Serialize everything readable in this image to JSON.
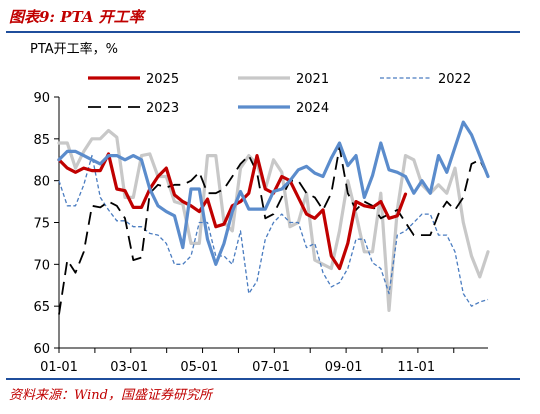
{
  "figure": {
    "title": "图表9:  PTA 开工率",
    "source": "资料来源：Wind，国盛证券研究所"
  },
  "chart_data": {
    "type": "line",
    "ylabel": "PTA开工率，%",
    "xlabel": "",
    "ylim": [
      60,
      90
    ],
    "yticks": [
      60,
      65,
      70,
      75,
      80,
      85,
      90
    ],
    "xlim": [
      1,
      53
    ],
    "xticks": [
      {
        "label": "01-01",
        "week": 1
      },
      {
        "label": "03-01",
        "week": 9.5
      },
      {
        "label": "05-01",
        "week": 18
      },
      {
        "label": "07-01",
        "week": 26.7
      },
      {
        "label": "09-01",
        "week": 35.5
      },
      {
        "label": "11-01",
        "week": 44.3
      }
    ],
    "grid": false,
    "legend_position": "top",
    "series": [
      {
        "name": "2025",
        "color": "#c00000",
        "dash": "solid",
        "width": 3.2,
        "values": [
          82.5,
          81.5,
          81,
          81.5,
          81.2,
          81.2,
          83.2,
          79,
          78.8,
          76.8,
          76.8,
          79,
          80.5,
          81.5,
          78.3,
          77.5,
          77,
          76.3,
          77.8,
          74.5,
          74.8,
          77,
          77.5,
          78.5,
          83,
          79,
          78.5,
          80.5,
          80,
          78,
          76,
          75.5,
          76.5,
          71,
          69.5,
          72.5,
          77.5,
          77,
          76.8,
          77.5,
          75.5,
          75.8,
          78.4
        ]
      },
      {
        "name": "2021",
        "color": "#c8c8c8",
        "dash": "solid",
        "width": 3.2,
        "values": [
          84.5,
          84.5,
          81.5,
          83.5,
          85,
          85,
          86,
          85.2,
          78,
          78,
          83,
          83.2,
          80.5,
          80.5,
          77.5,
          77.2,
          72.5,
          72.5,
          83,
          83,
          75,
          74,
          81.5,
          83,
          82,
          79,
          82.5,
          81,
          74.5,
          75,
          78.5,
          70.5,
          70,
          69.5,
          74,
          80,
          76,
          71.5,
          71.5,
          78.5,
          64.5,
          76.5,
          83,
          82.5,
          79.5,
          78.5,
          79.5,
          78.5,
          81.5,
          75,
          71,
          68.5,
          71.5
        ]
      },
      {
        "name": "2022",
        "color": "#4a7cc0",
        "dash": "dash-fine",
        "width": 1.3,
        "values": [
          80,
          77,
          77,
          79.5,
          83,
          78,
          76.5,
          75.2,
          75.2,
          74.5,
          74.5,
          73.7,
          73.5,
          72.5,
          70,
          70,
          71,
          75,
          75,
          71,
          71,
          70,
          74,
          66.5,
          68,
          73,
          75,
          76,
          75,
          75,
          72,
          72.5,
          69,
          67.3,
          67.8,
          69.5,
          73,
          73,
          70.2,
          69.5,
          66.5,
          73.5,
          74,
          75,
          76,
          76,
          73.5,
          73.5,
          71.5,
          66.5,
          65,
          65.5,
          65.8
        ]
      },
      {
        "name": "2023",
        "color": "#000000",
        "dash": "dash-long",
        "width": 1.8,
        "values": [
          64,
          70.5,
          69,
          71.5,
          77,
          76.8,
          77.5,
          77,
          75.5,
          70.5,
          70.8,
          78.5,
          79.5,
          79.2,
          79.5,
          79.5,
          80,
          81,
          78.5,
          78.5,
          79,
          80.5,
          82,
          83,
          81,
          75.5,
          76,
          78,
          80,
          80,
          78.5,
          78,
          76.5,
          78.5,
          84,
          78.5,
          76.5,
          77.5,
          77,
          75.5,
          76,
          76.5,
          75,
          73.5,
          73.5,
          73.5,
          76,
          77.5,
          76.5,
          78,
          82,
          82.5,
          80.5
        ]
      },
      {
        "name": "2024",
        "color": "#5b8ccc",
        "dash": "solid",
        "width": 3.2,
        "values": [
          82.5,
          83.5,
          83.5,
          83,
          82.5,
          82,
          83,
          83,
          82.5,
          83,
          82.5,
          79,
          77,
          76.3,
          75.8,
          72,
          79,
          79,
          73,
          70,
          72.5,
          76.3,
          78.7,
          76.6,
          76.6,
          76.6,
          78.7,
          79,
          80,
          81.3,
          81.7,
          80.9,
          80.5,
          82.7,
          84.5,
          81.8,
          83,
          78,
          80.6,
          84.5,
          81.3,
          81,
          80.5,
          78.5,
          80,
          78.5,
          83,
          81,
          84,
          87,
          85.5,
          83,
          80.5
        ]
      }
    ]
  }
}
